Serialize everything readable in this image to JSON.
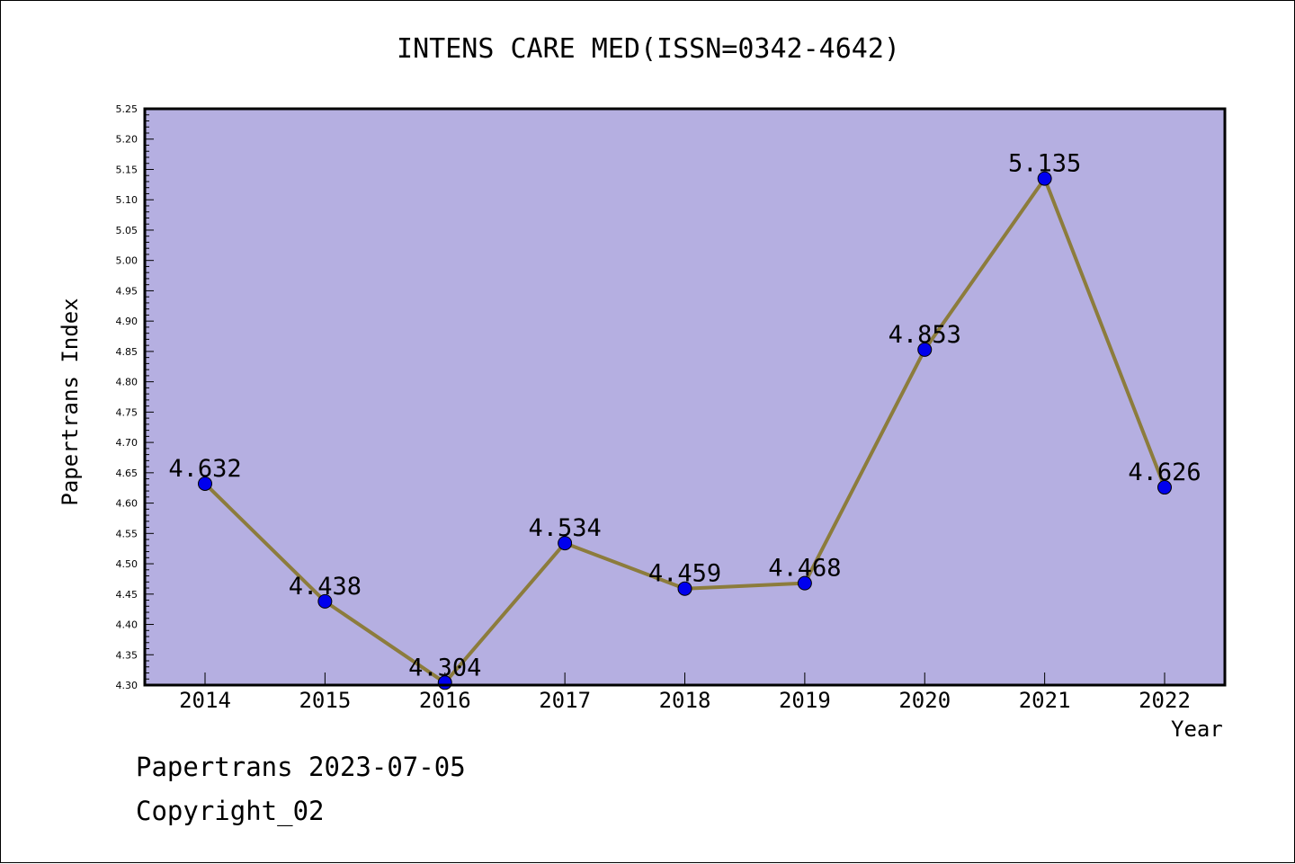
{
  "chart_data": {
    "type": "line",
    "title": "INTENS CARE MED(ISSN=0342-4642)",
    "xlabel": "Year",
    "ylabel": "Papertrans Index",
    "categories": [
      "2014",
      "2015",
      "2016",
      "2017",
      "2018",
      "2019",
      "2020",
      "2021",
      "2022"
    ],
    "series": [
      {
        "values": [
          4.632,
          4.438,
          4.304,
          4.534,
          4.459,
          4.468,
          4.853,
          5.135,
          4.626
        ]
      }
    ],
    "data_labels": [
      "4.632",
      "4.438",
      "4.304",
      "4.534",
      "4.459",
      "4.468",
      "4.853",
      "5.135",
      "4.626"
    ],
    "ylim": [
      4.3,
      5.25
    ],
    "yticks": [
      "4.30",
      "4.35",
      "4.40",
      "4.45",
      "4.50",
      "4.55",
      "4.60",
      "4.65",
      "4.70",
      "4.75",
      "4.80",
      "4.85",
      "4.90",
      "4.95",
      "5.00",
      "5.05",
      "5.10",
      "5.15",
      "5.20",
      "5.25"
    ],
    "grid": false,
    "colors": {
      "plot_background": "#b5afe1",
      "line": "#8c7c3c",
      "marker": "#0000ee"
    }
  },
  "footer": {
    "date_text": "Papertrans 2023-07-05",
    "copyright_text": "Copyright_02"
  }
}
